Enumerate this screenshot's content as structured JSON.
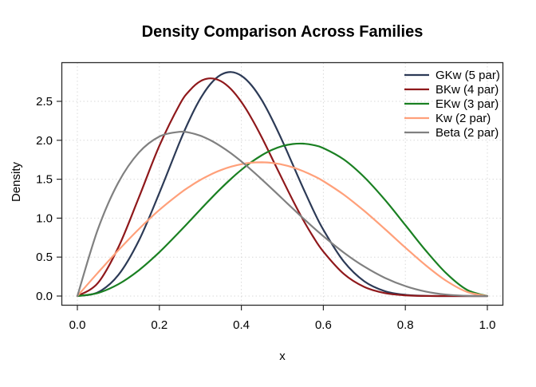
{
  "chart_data": {
    "type": "line",
    "title": "Density Comparison Across Families",
    "xlabel": "x",
    "ylabel": "Density",
    "xlim": [
      0,
      1
    ],
    "ylim": [
      0,
      2.99
    ],
    "grid": "dotted",
    "grid_color": "#D9D9D9",
    "axis_color": "#2B2B2B",
    "background": "#FFFFFF",
    "legend_position": "topright",
    "x_ticks": {
      "labels": [
        "0.0",
        "0.2",
        "0.4",
        "0.6",
        "0.8",
        "1.0"
      ],
      "values": [
        0,
        0.2,
        0.4,
        0.6,
        0.8,
        1.0
      ]
    },
    "y_ticks": {
      "labels": [
        "0.0",
        "0.5",
        "1.0",
        "1.5",
        "2.0",
        "2.5"
      ],
      "values": [
        0,
        0.5,
        1.0,
        1.5,
        2.0,
        2.5
      ]
    },
    "x": [
      0,
      0.05,
      0.1,
      0.15,
      0.2,
      0.25,
      0.275,
      0.3,
      0.325,
      0.35,
      0.375,
      0.4,
      0.425,
      0.45,
      0.475,
      0.5,
      0.525,
      0.55,
      0.575,
      0.6,
      0.65,
      0.7,
      0.75,
      0.8,
      0.85,
      0.9,
      0.95,
      1.0
    ],
    "series": [
      {
        "name": "GKw (5 par)",
        "color": "#2C3A56",
        "values": [
          0,
          0.047,
          0.27,
          0.712,
          1.324,
          1.983,
          2.282,
          2.535,
          2.725,
          2.841,
          2.876,
          2.829,
          2.705,
          2.514,
          2.269,
          1.991,
          1.693,
          1.394,
          1.109,
          0.851,
          0.443,
          0.189,
          0.063,
          0.015,
          0.002,
          0,
          0,
          0
        ]
      },
      {
        "name": "BKw (4 par)",
        "color": "#8F181B",
        "values": [
          0,
          0.167,
          0.626,
          1.265,
          1.929,
          2.464,
          2.646,
          2.758,
          2.795,
          2.759,
          2.655,
          2.492,
          2.281,
          2.035,
          1.767,
          1.499,
          1.234,
          0.985,
          0.763,
          0.571,
          0.284,
          0.117,
          0.038,
          0.009,
          0.001,
          0,
          0,
          0
        ]
      },
      {
        "name": "EKw (3 par)",
        "color": "#1A8022",
        "values": [
          0,
          0.039,
          0.152,
          0.331,
          0.563,
          0.83,
          0.969,
          1.11,
          1.248,
          1.381,
          1.506,
          1.621,
          1.722,
          1.808,
          1.877,
          1.925,
          1.952,
          1.957,
          1.94,
          1.9,
          1.753,
          1.526,
          1.237,
          0.911,
          0.583,
          0.291,
          0.081,
          0
        ]
      },
      {
        "name": "Kw (2 par)",
        "color": "#FFA07A",
        "values": [
          0,
          0.299,
          0.588,
          0.86,
          1.106,
          1.318,
          1.41,
          1.491,
          1.56,
          1.617,
          1.662,
          1.693,
          1.712,
          1.717,
          1.709,
          1.688,
          1.653,
          1.605,
          1.546,
          1.475,
          1.301,
          1.092,
          0.861,
          0.622,
          0.393,
          0.195,
          0.054,
          0
        ]
      },
      {
        "name": "Beta (2 par)",
        "color": "#808080",
        "values": [
          0,
          0.857,
          1.458,
          1.842,
          2.048,
          2.109,
          2.096,
          2.058,
          1.999,
          1.922,
          1.831,
          1.728,
          1.616,
          1.497,
          1.375,
          1.25,
          1.125,
          1.002,
          0.883,
          0.768,
          0.557,
          0.378,
          0.234,
          0.128,
          0.057,
          0.018,
          0.002,
          0
        ]
      }
    ]
  }
}
